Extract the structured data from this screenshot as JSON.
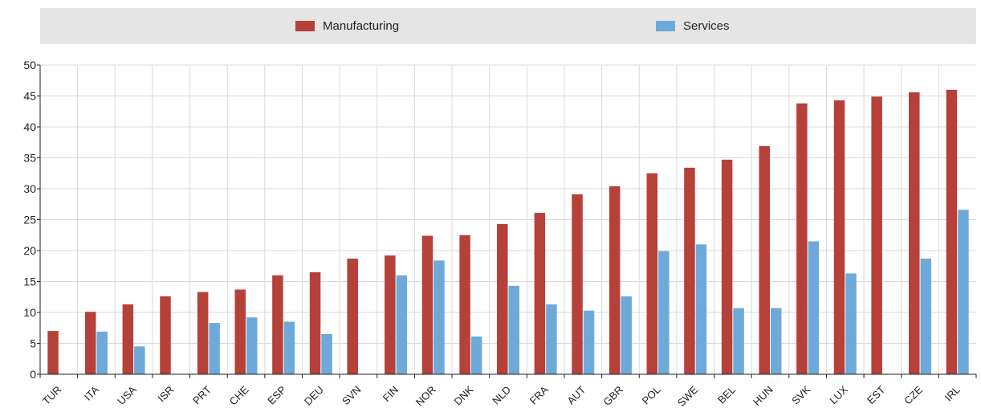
{
  "colors": {
    "manufacturing": "#b5413a",
    "services": "#6eaad9",
    "grid": "#d9d9d9",
    "axis": "#222222"
  },
  "chart_data": {
    "type": "bar",
    "categories": [
      "TUR",
      "ITA",
      "USA",
      "ISR",
      "PRT",
      "CHE",
      "ESP",
      "DEU",
      "SVN",
      "FIN",
      "NOR",
      "DNK",
      "NLD",
      "FRA",
      "AUT",
      "GBR",
      "POL",
      "SWE",
      "BEL",
      "HUN",
      "SVK",
      "LUX",
      "EST",
      "CZE",
      "IRL"
    ],
    "series": [
      {
        "name": "Manufacturing",
        "values": [
          7.0,
          10.1,
          11.3,
          12.6,
          13.3,
          13.7,
          16.0,
          16.5,
          18.7,
          19.2,
          22.4,
          22.5,
          24.3,
          26.1,
          29.1,
          30.4,
          32.5,
          33.4,
          34.7,
          36.9,
          43.8,
          44.3,
          44.9,
          45.6,
          46.0
        ]
      },
      {
        "name": "Services",
        "values": [
          null,
          6.9,
          4.5,
          null,
          8.3,
          9.2,
          8.5,
          6.5,
          null,
          16.0,
          18.4,
          6.1,
          14.3,
          11.3,
          10.3,
          12.6,
          19.9,
          21.0,
          10.7,
          10.7,
          21.5,
          16.3,
          null,
          18.7,
          26.6
        ]
      }
    ],
    "yticks": [
      "0",
      "5",
      "10",
      "15",
      "20",
      "25",
      "30",
      "35",
      "40",
      "45",
      "50"
    ],
    "ylim": [
      0,
      50
    ],
    "grid": true,
    "legend_position": "top"
  }
}
